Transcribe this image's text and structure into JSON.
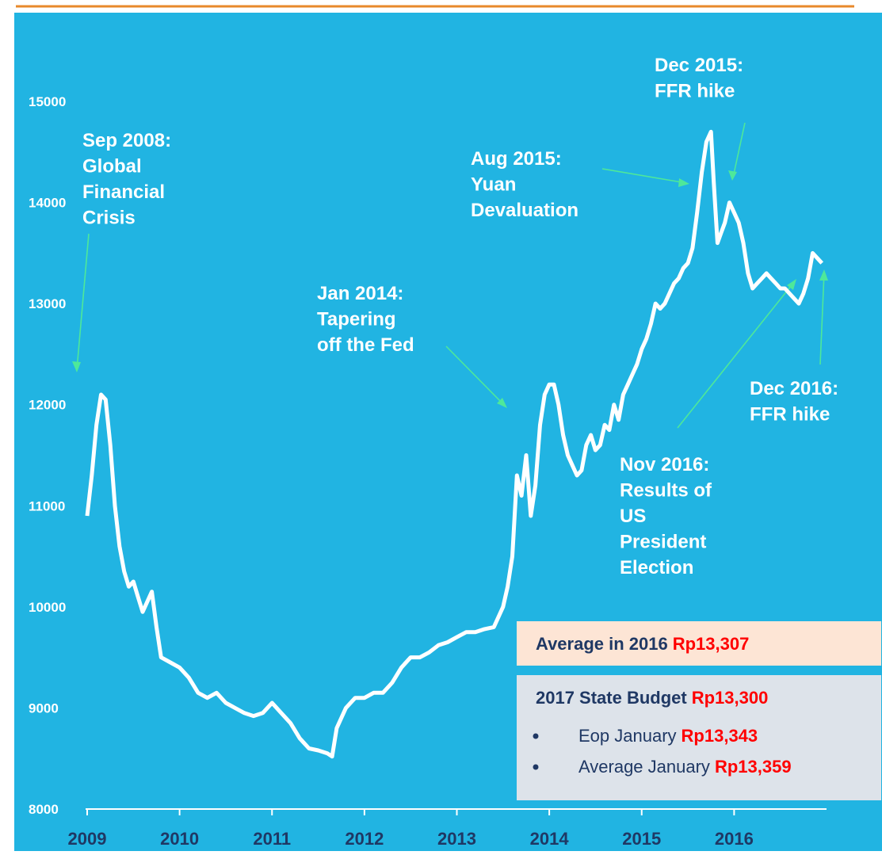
{
  "chart_data": {
    "type": "line",
    "color": "#ffffff",
    "x": [
      2009.0,
      2009.05,
      2009.1,
      2009.15,
      2009.2,
      2009.25,
      2009.3,
      2009.35,
      2009.4,
      2009.45,
      2009.5,
      2009.55,
      2009.6,
      2009.7,
      2009.75,
      2009.8,
      2009.9,
      2010.0,
      2010.1,
      2010.2,
      2010.3,
      2010.4,
      2010.5,
      2010.6,
      2010.7,
      2010.8,
      2010.9,
      2011.0,
      2011.1,
      2011.2,
      2011.3,
      2011.4,
      2011.5,
      2011.6,
      2011.65,
      2011.7,
      2011.8,
      2011.9,
      2012.0,
      2012.1,
      2012.2,
      2012.3,
      2012.4,
      2012.5,
      2012.6,
      2012.7,
      2012.8,
      2012.9,
      2013.0,
      2013.1,
      2013.2,
      2013.3,
      2013.4,
      2013.5,
      2013.55,
      2013.6,
      2013.65,
      2013.7,
      2013.75,
      2013.8,
      2013.85,
      2013.9,
      2013.95,
      2014.0,
      2014.05,
      2014.1,
      2014.15,
      2014.2,
      2014.25,
      2014.3,
      2014.35,
      2014.4,
      2014.45,
      2014.5,
      2014.55,
      2014.6,
      2014.65,
      2014.7,
      2014.75,
      2014.8,
      2014.85,
      2014.9,
      2014.95,
      2015.0,
      2015.05,
      2015.1,
      2015.15,
      2015.2,
      2015.25,
      2015.3,
      2015.35,
      2015.4,
      2015.45,
      2015.5,
      2015.55,
      2015.6,
      2015.65,
      2015.7,
      2015.75,
      2015.78,
      2015.82,
      2015.86,
      2015.9,
      2015.95,
      2016.0,
      2016.05,
      2016.1,
      2016.15,
      2016.2,
      2016.25,
      2016.3,
      2016.35,
      2016.4,
      2016.45,
      2016.5,
      2016.55,
      2016.6,
      2016.65,
      2016.7,
      2016.75,
      2016.8,
      2016.85,
      2016.9,
      2016.95
    ],
    "values": [
      10900,
      11300,
      11800,
      12100,
      12050,
      11600,
      11000,
      10600,
      10350,
      10200,
      10250,
      10100,
      9950,
      10150,
      9800,
      9500,
      9450,
      9400,
      9300,
      9150,
      9100,
      9150,
      9050,
      9000,
      8950,
      8920,
      8950,
      9050,
      8950,
      8850,
      8700,
      8600,
      8580,
      8550,
      8520,
      8800,
      9000,
      9100,
      9100,
      9150,
      9150,
      9250,
      9400,
      9500,
      9500,
      9550,
      9620,
      9650,
      9700,
      9750,
      9750,
      9780,
      9800,
      10000,
      10200,
      10500,
      11300,
      11100,
      11500,
      10900,
      11200,
      11800,
      12100,
      12200,
      12200,
      12000,
      11700,
      11500,
      11400,
      11300,
      11350,
      11600,
      11700,
      11550,
      11600,
      11800,
      11750,
      12000,
      11850,
      12100,
      12200,
      12300,
      12400,
      12550,
      12650,
      12800,
      13000,
      12950,
      13000,
      13100,
      13200,
      13250,
      13350,
      13400,
      13550,
      13900,
      14300,
      14600,
      14700,
      14200,
      13600,
      13700,
      13800,
      14000,
      13900,
      13800,
      13600,
      13300,
      13150,
      13200,
      13250,
      13300,
      13250,
      13200,
      13150,
      13150,
      13100,
      13050,
      13000,
      13100,
      13250,
      13500,
      13450,
      13400
    ],
    "xlim": [
      2009,
      2017
    ],
    "xticks": [
      2009,
      2010,
      2011,
      2012,
      2013,
      2014,
      2015,
      2016
    ],
    "ylim": [
      8000,
      15000
    ],
    "yticks": [
      8000,
      9000,
      10000,
      11000,
      12000,
      13000,
      14000,
      15000
    ],
    "annotations": [
      {
        "lines": [
          "Sep 2008:",
          "Global",
          "Financial",
          "Crisis"
        ]
      },
      {
        "lines": [
          "Jan 2014:",
          "Tapering",
          "off the Fed"
        ]
      },
      {
        "lines": [
          "Aug 2015:",
          "Yuan",
          "Devaluation"
        ]
      },
      {
        "lines": [
          "Dec 2015:",
          "FFR hike"
        ]
      },
      {
        "lines": [
          "Nov 2016:",
          "Results of",
          "US",
          "President",
          "Election"
        ]
      },
      {
        "lines": [
          "Dec 2016:",
          "FFR hike"
        ]
      }
    ],
    "info_boxes": [
      {
        "label": "Average in 2016",
        "value": "Rp13,307"
      },
      {
        "label": "2017 State Budget",
        "value": "Rp13,300",
        "items": [
          {
            "label": "Eop January",
            "value": "Rp13,343"
          },
          {
            "label": "Average January",
            "value": "Rp13,359"
          }
        ]
      }
    ]
  }
}
